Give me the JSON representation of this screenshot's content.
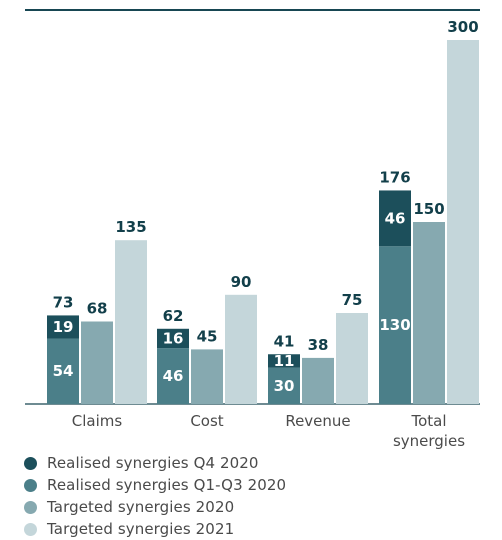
{
  "chart_data": {
    "type": "bar",
    "categories": [
      "Claims",
      "Cost",
      "Revenue",
      "Total synergies"
    ],
    "category_lines": [
      [
        "Claims"
      ],
      [
        "Cost"
      ],
      [
        "Revenue"
      ],
      [
        "Total",
        "synergies"
      ]
    ],
    "series": [
      {
        "name": "Realised synergies Q4 2020",
        "color": "#1c4f5b",
        "values": [
          19,
          16,
          11,
          46
        ]
      },
      {
        "name": "Realised synergies Q1-Q3 2020",
        "color": "#4b7f89",
        "values": [
          54,
          46,
          30,
          130
        ]
      },
      {
        "name": "Targeted synergies 2020",
        "color": "#86a9b0",
        "values": [
          68,
          45,
          38,
          150
        ]
      },
      {
        "name": "Targeted synergies 2021",
        "color": "#c4d6da",
        "values": [
          135,
          90,
          75,
          300
        ]
      }
    ],
    "realised_totals": [
      73,
      62,
      41,
      176
    ],
    "stacked_group": "realised",
    "ylim": [
      0,
      300
    ],
    "grid": false,
    "legend_position": "bottom-left",
    "title": "",
    "xlabel": "",
    "ylabel": ""
  }
}
